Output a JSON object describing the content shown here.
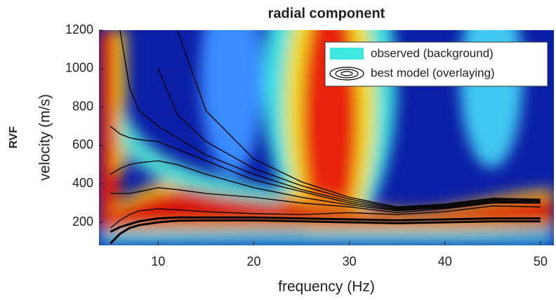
{
  "chart_data": {
    "type": "contour-overlay",
    "title": "radial component",
    "side_label": "RVF",
    "x_label": "frequency (Hz)",
    "y_label": "velocity (m/s)",
    "xlim": [
      3.8,
      51.4
    ],
    "ylim": [
      80,
      1200
    ],
    "xticks": [
      10,
      20,
      30,
      40,
      50
    ],
    "yticks": [
      200,
      400,
      600,
      800,
      1000,
      1200
    ],
    "legend": {
      "position": "upper right",
      "entries": [
        "observed (background)",
        "best model (overlaying)"
      ],
      "swatch_color": "#40e8e0"
    },
    "line_color": "#000000",
    "x": [
      5,
      6,
      7,
      8,
      10,
      12,
      15,
      20,
      25,
      30,
      35,
      40,
      45,
      50
    ],
    "series": [
      {
        "values": [
          90,
          140,
          170,
          185,
          200,
          208,
          210,
          210,
          205,
          200,
          195,
          200,
          205,
          205
        ]
      },
      {
        "values": [
          150,
          175,
          190,
          205,
          220,
          225,
          225,
          225,
          220,
          215,
          210,
          215,
          220,
          220
        ]
      },
      {
        "values": [
          170,
          210,
          240,
          260,
          270,
          265,
          255,
          245,
          240,
          250,
          240,
          255,
          285,
          280
        ]
      },
      {
        "values": [
          350,
          350,
          350,
          360,
          380,
          370,
          350,
          330,
          300,
          280,
          250,
          270,
          300,
          300
        ]
      },
      {
        "values": [
          450,
          480,
          500,
          510,
          520,
          500,
          450,
          380,
          330,
          290,
          260,
          275,
          305,
          300
        ]
      },
      {
        "values": [
          700,
          660,
          640,
          630,
          620,
          580,
          520,
          420,
          360,
          300,
          265,
          280,
          310,
          305
        ]
      },
      {
        "values": [
          null,
          1200,
          900,
          780,
          700,
          640,
          550,
          450,
          370,
          310,
          270,
          285,
          315,
          310
        ]
      },
      {
        "values": [
          null,
          null,
          null,
          null,
          1000,
          760,
          620,
          480,
          390,
          320,
          275,
          290,
          320,
          315
        ]
      },
      {
        "values": [
          null,
          null,
          null,
          null,
          null,
          1200,
          780,
          530,
          410,
          330,
          280,
          295,
          325,
          320
        ]
      }
    ]
  }
}
